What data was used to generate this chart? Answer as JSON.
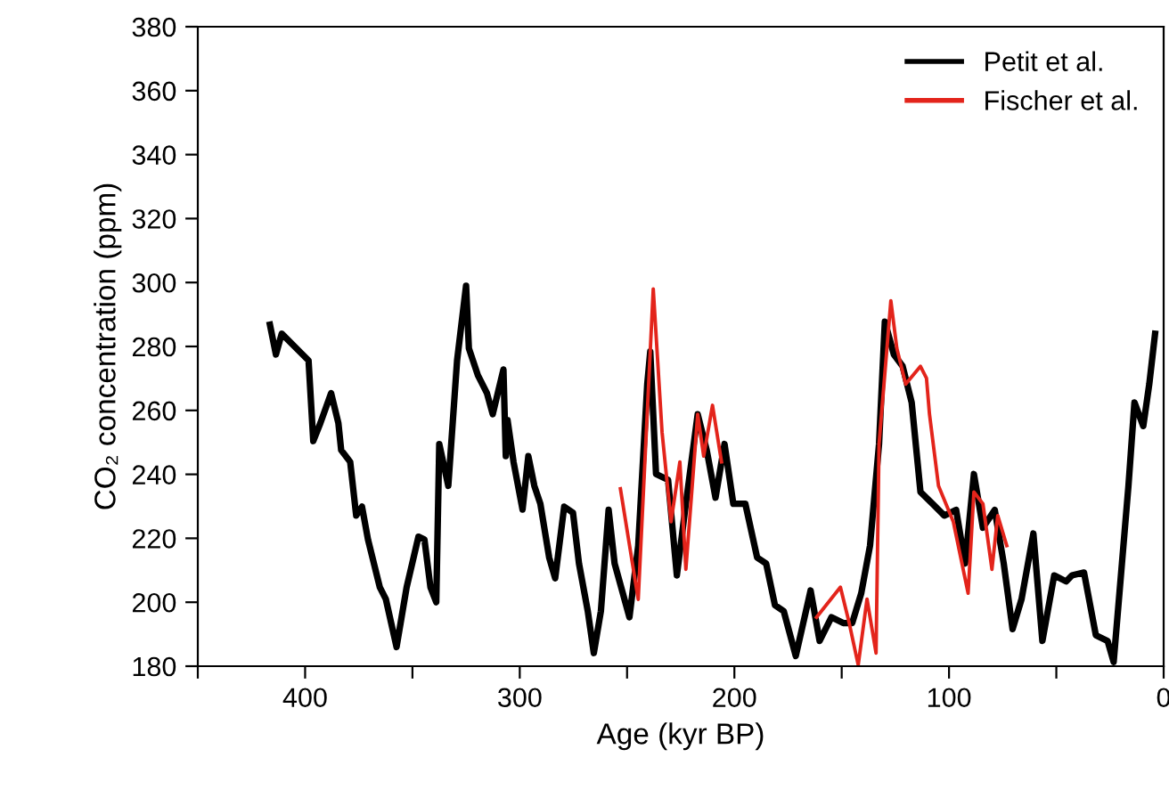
{
  "chart_data": {
    "type": "line",
    "xlabel": "Age (kyr BP)",
    "ylabel": "CO₂ concentration (ppm)",
    "xlim": [
      450,
      0
    ],
    "ylim": [
      180,
      380
    ],
    "xticks": [
      {
        "value": 450,
        "label": null
      },
      400,
      {
        "value": 350,
        "label": null
      },
      300,
      {
        "value": 250,
        "label": null
      },
      200,
      {
        "value": 150,
        "label": null
      },
      100,
      {
        "value": 50,
        "label": null
      },
      0
    ],
    "yticks": [
      180,
      200,
      220,
      240,
      260,
      280,
      300,
      320,
      340,
      360,
      380
    ],
    "grid": false,
    "legend": "top right",
    "marker": "none",
    "line_style": "solid",
    "series": [
      {
        "name": "Petit et al.",
        "color": "#000000",
        "x": [
          416.4,
          413.6,
          410.9,
          401.2,
          398.4,
          396.2,
          392.9,
          387.9,
          384.5,
          383.2,
          379.0,
          376.2,
          373.5,
          370.7,
          365.2,
          362.4,
          357.4,
          352.7,
          347.2,
          344.4,
          341.6,
          338.9,
          337.5,
          333.3,
          329.2,
          325.0,
          323.7,
          319.5,
          315.3,
          312.6,
          307.6,
          306.5,
          305.7,
          302.9,
          298.7,
          296.0,
          293.2,
          290.4,
          286.3,
          283.5,
          279.3,
          275.2,
          272.4,
          268.3,
          265.5,
          262.2,
          258.6,
          255.8,
          248.9,
          244.8,
          240.6,
          239.2,
          236.5,
          230.9,
          226.8,
          222.6,
          217.1,
          212.9,
          208.8,
          204.6,
          200.5,
          194.9,
          189.4,
          185.2,
          181.1,
          177.0,
          171.4,
          167.3,
          164.5,
          160.3,
          154.8,
          149.3,
          145.1,
          140.9,
          136.8,
          132.6,
          129.9,
          125.7,
          121.6,
          117.4,
          113.3,
          107.7,
          102.2,
          96.7,
          92.5,
          88.4,
          84.2,
          78.7,
          74.5,
          70.4,
          66.2,
          60.7,
          56.5,
          51.0,
          45.4,
          42.7,
          37.1,
          31.6,
          26.1,
          23.3,
          16.4,
          13.6,
          9.5,
          6.7,
          4.0
        ],
        "values": [
          286.8,
          277.5,
          284.0,
          277.5,
          275.6,
          250.4,
          256.0,
          265.4,
          256.0,
          247.6,
          243.9,
          227.1,
          229.9,
          219.6,
          204.7,
          201.0,
          186.0,
          204.7,
          220.5,
          219.6,
          204.7,
          200.0,
          249.5,
          236.4,
          275.6,
          299.0,
          279.4,
          271.0,
          265.4,
          258.8,
          272.8,
          245.7,
          257.0,
          243.9,
          229.0,
          245.7,
          236.4,
          230.8,
          214.0,
          207.5,
          229.9,
          228.0,
          212.1,
          197.2,
          184.1,
          197.2,
          228.9,
          212.1,
          195.3,
          217.7,
          268.2,
          278.4,
          240.1,
          238.3,
          208.4,
          230.8,
          258.8,
          247.6,
          232.7,
          249.5,
          230.8,
          230.8,
          214.0,
          212.1,
          199.1,
          197.2,
          183.2,
          195.3,
          203.7,
          187.9,
          195.3,
          193.5,
          193.5,
          202.8,
          217.7,
          249.5,
          287.8,
          277.5,
          273.8,
          262.5,
          234.5,
          230.8,
          227.1,
          228.9,
          212.1,
          240.1,
          223.3,
          228.9,
          212.1,
          191.6,
          201.0,
          221.5,
          187.9,
          208.4,
          206.5,
          208.4,
          209.3,
          189.7,
          187.9,
          181.3,
          236.4,
          262.5,
          255.1,
          268.2,
          284.0
        ]
      },
      {
        "name": "Fischer et al.",
        "color": "#e3241b",
        "x": [
          253.1,
          244.8,
          237.8,
          233.7,
          229.5,
          225.4,
          222.6,
          217.1,
          214.3,
          210.2,
          206.0,
          null,
          161.7,
          150.6,
          146.5,
          142.3,
          138.2,
          134.0,
          132.6,
          127.1,
          124.3,
          120.2,
          113.3,
          110.5,
          109.1,
          104.9,
          98.0,
          91.1,
          88.4,
          84.2,
          80.0,
          77.3,
          73.1
        ],
        "values": [
          235.5,
          200.9,
          298.0,
          253.2,
          225.2,
          243.9,
          210.3,
          258.8,
          245.7,
          261.6,
          243.9,
          null,
          195.3,
          204.7,
          193.5,
          180.4,
          201.0,
          184.1,
          249.5,
          294.3,
          279.4,
          268.2,
          273.8,
          270.1,
          258.8,
          236.4,
          225.2,
          202.8,
          234.5,
          230.8,
          210.3,
          227.1,
          217.7
        ]
      }
    ]
  }
}
